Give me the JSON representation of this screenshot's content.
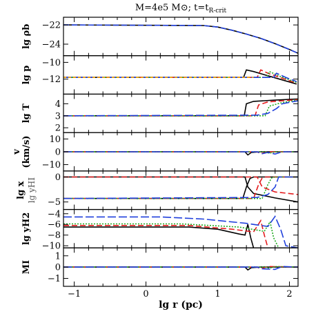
{
  "chart_data": {
    "type": "line",
    "title": "M=4e5 M⊙; t=t",
    "title_sub": "R-crit",
    "xlabel": "lg r (pc)",
    "xlim": [
      -1.15,
      2.12
    ],
    "xticks": [
      "−1",
      "0",
      "1",
      "2"
    ],
    "xtick_values": [
      -1,
      0,
      1,
      2
    ],
    "colors": {
      "black": "#000000",
      "red": "#e41a1c",
      "green": "#1faa1f",
      "blue": "#1f3fdc",
      "orange": "#f4a000"
    },
    "panels": [
      {
        "id": "rho",
        "ylabel": "lg ρb",
        "ylim": [
          -25.2,
          -21.2
        ],
        "yticks": [
          {
            "v": -22,
            "t": "−22"
          },
          {
            "v": -24,
            "t": "−24"
          }
        ],
        "series": [
          {
            "color": "black",
            "points": [
              [
                -1.15,
                -22
              ],
              [
                0.8,
                -22.06
              ],
              [
                1.0,
                -22.22
              ],
              [
                1.2,
                -22.55
              ],
              [
                1.4,
                -22.95
              ],
              [
                1.6,
                -23.4
              ],
              [
                1.8,
                -23.95
              ],
              [
                2.0,
                -24.55
              ],
              [
                2.12,
                -24.95
              ]
            ]
          },
          {
            "color": "blue",
            "dash": "8 4",
            "points": [
              [
                -1.15,
                -22
              ],
              [
                0.8,
                -22.06
              ],
              [
                1.0,
                -22.22
              ],
              [
                1.2,
                -22.55
              ],
              [
                1.4,
                -22.95
              ],
              [
                1.6,
                -23.4
              ],
              [
                1.8,
                -23.95
              ],
              [
                2.0,
                -24.55
              ],
              [
                2.12,
                -24.95
              ]
            ]
          }
        ]
      },
      {
        "id": "p",
        "ylabel": "lg p",
        "ylim": [
          -13.8,
          -9.2
        ],
        "yticks": [
          {
            "v": -10,
            "t": "−10"
          },
          {
            "v": -12,
            "t": "−12"
          }
        ],
        "series": [
          {
            "color": "black",
            "points": [
              [
                -1.15,
                -11.8
              ],
              [
                1.36,
                -11.8
              ],
              [
                1.4,
                -10.9
              ],
              [
                1.5,
                -11.1
              ],
              [
                1.7,
                -11.6
              ],
              [
                1.9,
                -12.1
              ],
              [
                2.1,
                -12.6
              ]
            ]
          },
          {
            "color": "red",
            "dash": "8 4",
            "points": [
              [
                -1.15,
                -11.8
              ],
              [
                1.55,
                -11.8
              ],
              [
                1.6,
                -10.9
              ],
              [
                1.7,
                -11.3
              ],
              [
                1.9,
                -11.9
              ],
              [
                2.1,
                -12.5
              ]
            ]
          },
          {
            "color": "green",
            "dash": "2 2",
            "points": [
              [
                -1.15,
                -11.8
              ],
              [
                1.68,
                -11.8
              ],
              [
                1.72,
                -11.1
              ],
              [
                1.85,
                -11.6
              ],
              [
                2.0,
                -12.1
              ],
              [
                2.1,
                -12.4
              ]
            ]
          },
          {
            "color": "blue",
            "dash": "12 4",
            "points": [
              [
                -1.15,
                -11.8
              ],
              [
                1.78,
                -11.8
              ],
              [
                1.82,
                -11.3
              ],
              [
                1.95,
                -11.8
              ],
              [
                2.1,
                -12.3
              ]
            ]
          },
          {
            "color": "orange",
            "dash": "4 3",
            "points": [
              [
                -1.15,
                -11.8
              ],
              [
                1.5,
                -11.8
              ]
            ]
          }
        ]
      },
      {
        "id": "T",
        "ylabel": "lg T",
        "ylim": [
          1.6,
          4.8
        ],
        "yticks": [
          {
            "v": 4,
            "t": "4"
          },
          {
            "v": 3,
            "t": "3"
          },
          {
            "v": 2,
            "t": "2"
          }
        ],
        "series": [
          {
            "color": "black",
            "points": [
              [
                -1.15,
                3
              ],
              [
                1.37,
                3
              ],
              [
                1.4,
                4.0
              ],
              [
                1.5,
                4.2
              ],
              [
                1.8,
                4.3
              ],
              [
                2.12,
                4.4
              ]
            ]
          },
          {
            "color": "red",
            "dash": "8 4",
            "points": [
              [
                -1.15,
                3
              ],
              [
                1.52,
                3
              ],
              [
                1.57,
                3.9
              ],
              [
                1.7,
                4.15
              ],
              [
                2.12,
                4.35
              ]
            ]
          },
          {
            "color": "green",
            "dash": "2 2",
            "points": [
              [
                -1.15,
                3
              ],
              [
                1.66,
                3
              ],
              [
                1.72,
                3.8
              ],
              [
                1.9,
                4.1
              ],
              [
                2.12,
                4.3
              ]
            ]
          },
          {
            "color": "blue",
            "dash": "12 4",
            "points": [
              [
                -1.15,
                3
              ],
              [
                1.55,
                3.05
              ],
              [
                1.7,
                3.2
              ],
              [
                1.82,
                3.6
              ],
              [
                1.9,
                4.0
              ],
              [
                2.12,
                4.25
              ]
            ]
          }
        ]
      },
      {
        "id": "v",
        "ylabel": "v",
        "ylabel2": "(km/s)",
        "ylim": [
          -15,
          15
        ],
        "yticks": [
          {
            "v": 10,
            "t": "10"
          },
          {
            "v": 0,
            "t": "0"
          },
          {
            "v": -10,
            "t": "−10"
          }
        ],
        "series": [
          {
            "color": "black",
            "points": [
              [
                -1.15,
                0
              ],
              [
                1.38,
                0
              ],
              [
                1.42,
                -2.5
              ],
              [
                1.47,
                -0.5
              ],
              [
                1.6,
                0
              ],
              [
                2.12,
                0
              ]
            ]
          },
          {
            "color": "red",
            "dash": "8 4",
            "points": [
              [
                -1.15,
                0
              ],
              [
                1.55,
                0
              ],
              [
                1.6,
                -1.5
              ],
              [
                1.7,
                0
              ],
              [
                2.12,
                0
              ]
            ]
          },
          {
            "color": "green",
            "dash": "2 2",
            "points": [
              [
                -1.15,
                0
              ],
              [
                1.66,
                0
              ],
              [
                1.72,
                -1.2
              ],
              [
                1.8,
                0
              ],
              [
                2.12,
                0
              ]
            ]
          },
          {
            "color": "blue",
            "dash": "12 4",
            "points": [
              [
                -1.15,
                0
              ],
              [
                1.55,
                0
              ],
              [
                1.62,
                -1.5
              ],
              [
                1.7,
                -0.5
              ],
              [
                1.8,
                -1.8
              ],
              [
                1.9,
                0
              ],
              [
                2.12,
                0
              ]
            ]
          }
        ]
      },
      {
        "id": "x",
        "ylabel": "lg x",
        "ylabel2": "lg yHI",
        "ylim": [
          -6.5,
          1.2
        ],
        "yticks": [
          {
            "v": 0,
            "t": "0"
          },
          {
            "v": -5,
            "t": "−5"
          }
        ],
        "series": [
          {
            "color": "black",
            "points": [
              [
                -1.15,
                -4.3
              ],
              [
                1.35,
                -4.3
              ],
              [
                1.4,
                -2
              ],
              [
                1.45,
                -0.3
              ],
              [
                1.5,
                0
              ],
              [
                2.12,
                0
              ]
            ]
          },
          {
            "color": "black",
            "points": [
              [
                -1.15,
                0
              ],
              [
                1.38,
                0
              ],
              [
                1.42,
                -2
              ],
              [
                1.5,
                -3.3
              ],
              [
                1.8,
                -4.2
              ],
              [
                2.12,
                -5
              ]
            ]
          },
          {
            "color": "red",
            "dash": "8 4",
            "points": [
              [
                -1.15,
                -4.3
              ],
              [
                1.5,
                -4.3
              ],
              [
                1.57,
                -1.5
              ],
              [
                1.62,
                -0.2
              ],
              [
                1.65,
                0
              ],
              [
                2.12,
                0
              ]
            ]
          },
          {
            "color": "green",
            "dash": "2 2",
            "points": [
              [
                -1.15,
                -4.3
              ],
              [
                1.62,
                -4.3
              ],
              [
                1.7,
                -1.5
              ],
              [
                1.75,
                -0.2
              ],
              [
                1.8,
                0
              ],
              [
                2.12,
                0
              ]
            ]
          },
          {
            "color": "blue",
            "dash": "12 4",
            "points": [
              [
                -1.15,
                -4.3
              ],
              [
                1.55,
                -4.1
              ],
              [
                1.7,
                -3.5
              ],
              [
                1.8,
                -2
              ],
              [
                1.85,
                0
              ],
              [
                2.12,
                0
              ]
            ]
          },
          {
            "color": "red",
            "dash": "8 4",
            "points": [
              [
                -1.15,
                0
              ],
              [
                1.55,
                0
              ],
              [
                1.62,
                -2
              ],
              [
                1.8,
                -3
              ],
              [
                2.12,
                -3.5
              ]
            ]
          }
        ]
      },
      {
        "id": "yH2",
        "ylabel": "lg yH2",
        "ylim": [
          -10.4,
          -3.2
        ],
        "yticks": [
          {
            "v": -4,
            "t": "−4"
          },
          {
            "v": -6,
            "t": "−6"
          },
          {
            "v": -8,
            "t": "−8"
          },
          {
            "v": -10,
            "t": "−10"
          }
        ],
        "series": [
          {
            "color": "black",
            "points": [
              [
                -1.15,
                -6.5
              ],
              [
                0.6,
                -6.5
              ],
              [
                1.0,
                -6.9
              ],
              [
                1.3,
                -7.8
              ],
              [
                1.38,
                -8
              ],
              [
                1.42,
                -6
              ],
              [
                1.46,
                -8.5
              ],
              [
                1.5,
                -10.4
              ]
            ]
          },
          {
            "color": "red",
            "dash": "8 4",
            "points": [
              [
                -1.15,
                -6.2
              ],
              [
                0.6,
                -6.2
              ],
              [
                1.2,
                -6.9
              ],
              [
                1.5,
                -7.4
              ],
              [
                1.6,
                -5.3
              ],
              [
                1.65,
                -8
              ],
              [
                1.7,
                -10.4
              ]
            ]
          },
          {
            "color": "green",
            "dash": "2 2",
            "points": [
              [
                -1.15,
                -5.9
              ],
              [
                0.5,
                -5.9
              ],
              [
                1.3,
                -6.5
              ],
              [
                1.65,
                -7.3
              ],
              [
                1.73,
                -5.5
              ],
              [
                1.78,
                -8.5
              ],
              [
                1.85,
                -10.4
              ]
            ]
          },
          {
            "color": "blue",
            "dash": "12 4",
            "points": [
              [
                -1.15,
                -4.6
              ],
              [
                0.2,
                -4.6
              ],
              [
                0.8,
                -5.0
              ],
              [
                1.4,
                -5.8
              ],
              [
                1.7,
                -6.4
              ],
              [
                1.8,
                -4.5
              ],
              [
                1.88,
                -7
              ],
              [
                1.95,
                -10
              ],
              [
                2.12,
                -10.4
              ]
            ]
          }
        ]
      },
      {
        "id": "MI",
        "ylabel": "MI",
        "ylim": [
          -1.7,
          1.7
        ],
        "yticks": [
          {
            "v": 1,
            "t": "1"
          },
          {
            "v": 0,
            "t": "0"
          },
          {
            "v": -1,
            "t": "−1"
          }
        ],
        "series": [
          {
            "color": "black",
            "points": [
              [
                -1.15,
                0
              ],
              [
                1.38,
                0
              ],
              [
                1.42,
                -0.25
              ],
              [
                1.47,
                -0.05
              ],
              [
                1.6,
                0
              ],
              [
                2.12,
                0
              ]
            ]
          },
          {
            "color": "red",
            "dash": "8 4",
            "points": [
              [
                -1.15,
                0
              ],
              [
                1.55,
                0
              ],
              [
                1.6,
                -0.15
              ],
              [
                1.7,
                0.05
              ],
              [
                2.12,
                0
              ]
            ]
          },
          {
            "color": "green",
            "dash": "2 2",
            "points": [
              [
                -1.15,
                0
              ],
              [
                1.66,
                0
              ],
              [
                1.72,
                -0.1
              ],
              [
                1.8,
                0.05
              ],
              [
                2.12,
                0
              ]
            ]
          },
          {
            "color": "blue",
            "dash": "12 4",
            "points": [
              [
                -1.15,
                0
              ],
              [
                1.55,
                0
              ],
              [
                1.62,
                -0.15
              ],
              [
                1.8,
                -0.2
              ],
              [
                1.9,
                0.05
              ],
              [
                2.12,
                0
              ]
            ]
          }
        ]
      }
    ]
  }
}
